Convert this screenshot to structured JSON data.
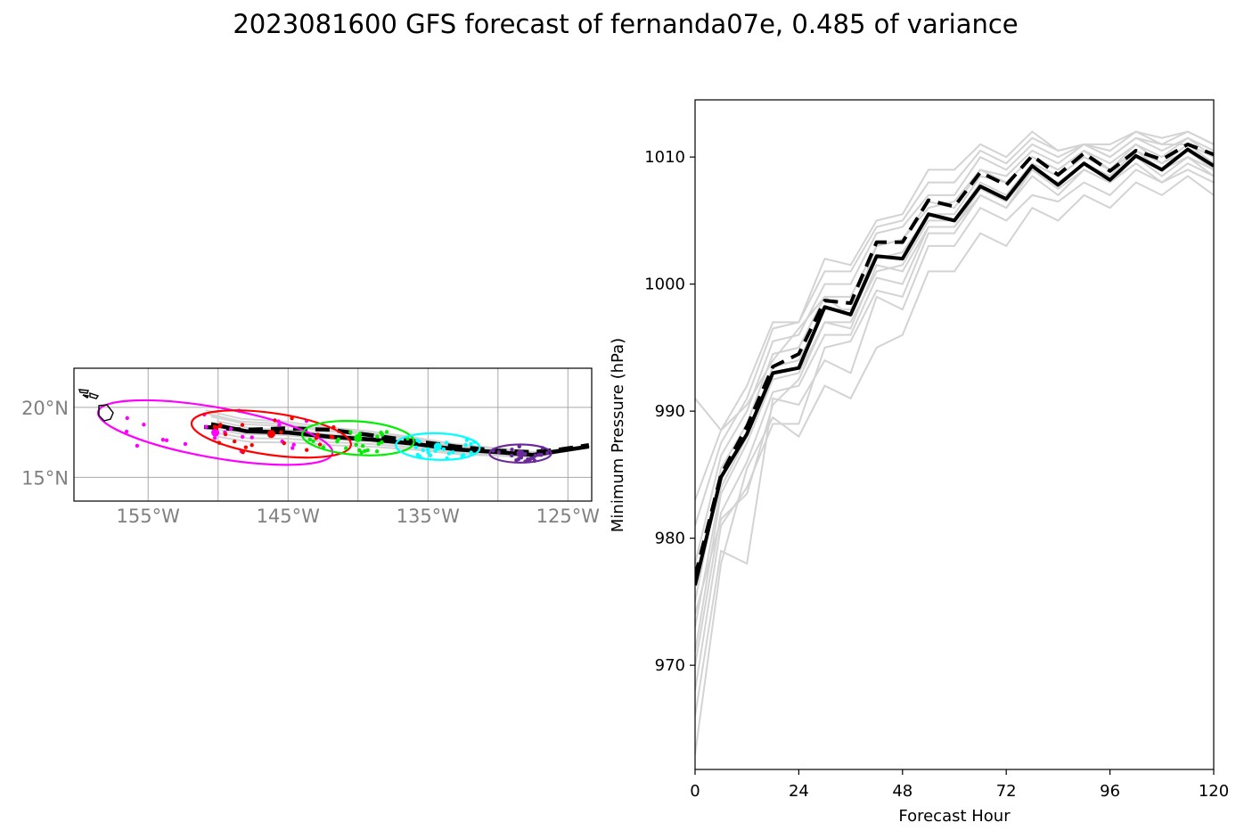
{
  "title": "2023081600 GFS forecast of fernanda07e, 0.485 of variance",
  "colors": {
    "ensemble": "#d3d3d3",
    "mean_track": "#000000",
    "map_labels": "#808080",
    "ellipses": [
      "#ff00ff",
      "#ff0000",
      "#00ee00",
      "#00ffff",
      "#6a2a9a"
    ]
  },
  "chart_data": [
    {
      "type": "map-track",
      "x_ticks": [
        "155°W",
        "145°W",
        "135°W",
        "125°W"
      ],
      "y_ticks": [
        "20°N",
        "15°N"
      ],
      "xlim": [
        -160.3,
        -123.3
      ],
      "ylim": [
        13.3,
        22.8
      ],
      "grid": true,
      "coastline": "Hawaiian Islands",
      "solid_track": {
        "lon": [
          -150.5,
          -148,
          -145,
          -142,
          -139,
          -136,
          -133,
          -130,
          -127.5,
          -125.5,
          -123.5
        ],
        "lat": [
          18.8,
          18.3,
          18.2,
          17.9,
          17.7,
          17.4,
          17.0,
          16.8,
          16.6,
          16.9,
          17.2
        ]
      },
      "dashed_track": {
        "lon": [
          -151,
          -148,
          -145,
          -142,
          -139,
          -136,
          -133,
          -130,
          -127.5,
          -125.5,
          -123.5
        ],
        "lat": [
          18.6,
          18.4,
          18.5,
          18.4,
          18.0,
          17.6,
          17.2,
          16.9,
          16.8,
          17.0,
          17.3
        ]
      },
      "ellipses": [
        {
          "color": "magenta",
          "center_lon": -150.2,
          "center_lat": 18.2,
          "width_deg": 17.0,
          "height_deg": 3.6,
          "angle_deg": 10
        },
        {
          "color": "red",
          "center_lon": -146.2,
          "center_lat": 18.1,
          "width_deg": 11.5,
          "height_deg": 3.0,
          "angle_deg": 8
        },
        {
          "color": "green",
          "center_lon": -140.0,
          "center_lat": 17.8,
          "width_deg": 8.0,
          "height_deg": 2.4,
          "angle_deg": 4
        },
        {
          "color": "cyan",
          "center_lon": -134.3,
          "center_lat": 17.2,
          "width_deg": 6.0,
          "height_deg": 1.9,
          "angle_deg": 2
        },
        {
          "color": "purple",
          "center_lon": -128.4,
          "center_lat": 16.7,
          "width_deg": 4.4,
          "height_deg": 1.3,
          "angle_deg": 0
        }
      ]
    },
    {
      "type": "line",
      "xlabel": "Forecast Hour",
      "ylabel": "Minimum Pressure (hPa)",
      "x_ticks": [
        "0",
        "24",
        "48",
        "72",
        "96",
        "120"
      ],
      "y_ticks": [
        "970",
        "980",
        "990",
        "1000",
        "1010"
      ],
      "xlim": [
        0,
        120
      ],
      "ylim": [
        961.8,
        1014.5
      ],
      "grid": false,
      "x": [
        0,
        6,
        12,
        18,
        24,
        30,
        36,
        42,
        48,
        54,
        60,
        66,
        72,
        78,
        84,
        90,
        96,
        102,
        108,
        114,
        120
      ],
      "series": [
        {
          "style": "solid",
          "values": [
            976.3,
            984.8,
            988.2,
            993.0,
            993.4,
            998.2,
            997.6,
            1002.2,
            1002.0,
            1005.5,
            1005.0,
            1007.7,
            1006.7,
            1009.3,
            1007.8,
            1009.5,
            1008.2,
            1010.1,
            1009.0,
            1010.6,
            1009.3
          ]
        },
        {
          "style": "dashed",
          "values": [
            977.0,
            985.0,
            988.8,
            993.5,
            994.5,
            998.7,
            998.5,
            1003.3,
            1003.3,
            1006.6,
            1006.1,
            1008.8,
            1007.8,
            1010.1,
            1008.6,
            1010.3,
            1008.9,
            1010.5,
            1009.8,
            1011.0,
            1010.2
          ]
        }
      ],
      "ensemble": [
        [
          963.0,
          978.0,
          985.5,
          989.5,
          988.0,
          992.0,
          991.0,
          995.0,
          996.0,
          1001.0,
          1001.0,
          1004.0,
          1003.0,
          1006.0,
          1005.0,
          1007.0,
          1006.0,
          1008.0,
          1007.0,
          1008.5,
          1007.0
        ],
        [
          966.0,
          979.0,
          978.0,
          991.0,
          990.5,
          994.0,
          993.0,
          999.0,
          998.0,
          1003.0,
          1003.0,
          1006.0,
          1005.0,
          1007.0,
          1006.5,
          1008.0,
          1007.0,
          1009.0,
          1008.0,
          1009.0,
          1008.0
        ],
        [
          968.0,
          981.0,
          984.0,
          989.0,
          989.0,
          995.0,
          995.5,
          999.5,
          999.0,
          1004.0,
          1004.0,
          1007.0,
          1006.0,
          1008.5,
          1007.0,
          1009.0,
          1008.0,
          1010.0,
          1008.5,
          1010.0,
          1008.5
        ],
        [
          970.0,
          982.0,
          986.0,
          991.5,
          992.0,
          996.0,
          996.0,
          1000.5,
          1000.0,
          1004.5,
          1004.5,
          1007.5,
          1006.5,
          1009.0,
          1008.0,
          1009.5,
          1008.5,
          1010.5,
          1009.5,
          1010.5,
          1009.0
        ],
        [
          971.0,
          983.5,
          987.5,
          992.5,
          993.0,
          997.0,
          997.0,
          1001.0,
          1001.5,
          1005.0,
          1005.0,
          1008.0,
          1007.0,
          1009.5,
          1008.5,
          1010.0,
          1009.0,
          1011.0,
          1009.5,
          1011.0,
          1009.5
        ],
        [
          973.0,
          984.0,
          988.0,
          993.5,
          994.0,
          998.0,
          998.0,
          1002.0,
          1002.5,
          1005.5,
          1005.5,
          1008.5,
          1008.0,
          1010.0,
          1009.0,
          1010.5,
          1009.5,
          1011.0,
          1010.0,
          1011.5,
          1010.0
        ],
        [
          975.0,
          985.5,
          989.0,
          994.5,
          995.0,
          999.0,
          999.0,
          1003.0,
          1003.5,
          1006.0,
          1006.5,
          1009.0,
          1008.5,
          1010.5,
          1009.5,
          1011.0,
          1010.0,
          1011.5,
          1010.5,
          1011.5,
          1010.5
        ],
        [
          978.0,
          986.5,
          990.0,
          995.5,
          996.0,
          1000.0,
          1000.0,
          1004.0,
          1004.5,
          1007.0,
          1007.0,
          1010.0,
          1009.0,
          1011.0,
          1010.0,
          1011.0,
          1010.5,
          1012.0,
          1011.0,
          1012.0,
          1011.0
        ],
        [
          981.0,
          987.5,
          991.0,
          996.5,
          997.0,
          1001.0,
          1001.0,
          1004.5,
          1005.0,
          1008.0,
          1008.0,
          1010.5,
          1009.5,
          1011.5,
          1010.5,
          1011.0,
          1011.0,
          1012.0,
          1011.5,
          1012.0,
          1011.0
        ],
        [
          983.0,
          988.5,
          992.0,
          997.0,
          997.0,
          1002.0,
          1001.5,
          1005.0,
          1005.5,
          1009.0,
          1009.0,
          1011.0,
          1010.0,
          1012.0,
          1010.5,
          1011.0,
          1010.0,
          1011.5,
          1011.0,
          1011.0,
          1010.0
        ],
        [
          991.0,
          988.5,
          990.5,
          994.0,
          996.5,
          999.0,
          997.5,
          1003.0,
          1003.5,
          1006.5,
          1006.0,
          1009.0,
          1008.0,
          1010.0,
          1009.0,
          1010.5,
          1009.0,
          1010.5,
          1009.0,
          1010.0,
          1009.0
        ],
        [
          974.0,
          981.5,
          983.5,
          990.5,
          992.5,
          997.0,
          996.5,
          1001.5,
          1001.0,
          1004.5,
          1004.5,
          1007.0,
          1006.0,
          1009.0,
          1007.5,
          1009.0,
          1008.0,
          1009.5,
          1008.0,
          1009.5,
          1008.5
        ]
      ]
    }
  ]
}
